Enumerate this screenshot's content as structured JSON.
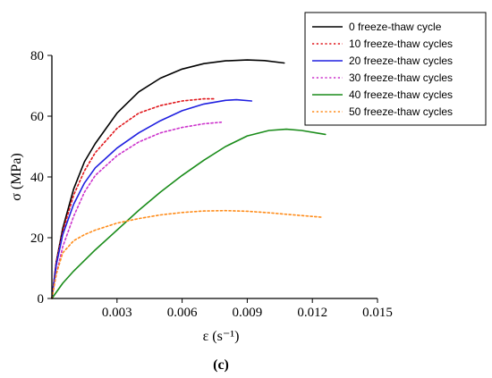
{
  "chart_data": {
    "type": "line",
    "xlabel": "ε (s⁻¹)",
    "ylabel": "σ (MPa)",
    "panel_label": "(c)",
    "xlim": [
      0,
      0.015
    ],
    "ylim": [
      0,
      80
    ],
    "x_ticks": [
      "0.003",
      "0.006",
      "0.009",
      "0.012",
      "0.015"
    ],
    "y_ticks": [
      "0",
      "20",
      "40",
      "60",
      "80"
    ],
    "legend_position": "top-right",
    "series": [
      {
        "name": "0 freeze-thaw cycle",
        "color": "#000000",
        "style": "solid",
        "x": [
          0,
          0.0002,
          0.0005,
          0.001,
          0.0015,
          0.002,
          0.003,
          0.004,
          0.005,
          0.006,
          0.007,
          0.008,
          0.009,
          0.0098,
          0.0107
        ],
        "y": [
          0,
          12,
          23,
          36,
          45,
          51,
          61,
          68,
          72.5,
          75.5,
          77.3,
          78.2,
          78.5,
          78.3,
          77.5
        ]
      },
      {
        "name": "10 freeze-thaw cycles",
        "color": "#e0161b",
        "style": "dotted",
        "x": [
          0,
          0.0002,
          0.0005,
          0.001,
          0.0015,
          0.002,
          0.003,
          0.004,
          0.005,
          0.006,
          0.007,
          0.0075
        ],
        "y": [
          0,
          12,
          22,
          34,
          42,
          48,
          56,
          61,
          63.5,
          65,
          65.7,
          65.7
        ]
      },
      {
        "name": "20 freeze-thaw cycles",
        "color": "#1f1fe0",
        "style": "solid",
        "x": [
          0,
          0.0002,
          0.0005,
          0.001,
          0.0015,
          0.002,
          0.003,
          0.004,
          0.005,
          0.006,
          0.007,
          0.008,
          0.0085,
          0.0092
        ],
        "y": [
          0,
          11,
          21,
          31,
          38,
          43,
          49.5,
          54.5,
          58.5,
          61.8,
          64,
          65.2,
          65.4,
          65
        ]
      },
      {
        "name": "30 freeze-thaw cycles",
        "color": "#cc33cc",
        "style": "dotted",
        "x": [
          0,
          0.0002,
          0.0005,
          0.001,
          0.0015,
          0.002,
          0.003,
          0.004,
          0.005,
          0.006,
          0.007,
          0.0078
        ],
        "y": [
          0,
          8,
          17,
          27,
          35,
          40.5,
          47,
          51.5,
          54.5,
          56.3,
          57.5,
          58
        ]
      },
      {
        "name": "40 freeze-thaw cycles",
        "color": "#1a8c1a",
        "style": "solid",
        "x": [
          0,
          0.0005,
          0.001,
          0.002,
          0.003,
          0.004,
          0.005,
          0.006,
          0.007,
          0.008,
          0.009,
          0.01,
          0.0108,
          0.0115,
          0.0126
        ],
        "y": [
          0,
          5,
          9,
          16,
          22.5,
          29,
          35,
          40.5,
          45.5,
          50,
          53.5,
          55.3,
          55.7,
          55.3,
          54
        ]
      },
      {
        "name": "50 freeze-thaw cycles",
        "color": "#ff8c1a",
        "style": "dotted",
        "x": [
          0,
          0.0002,
          0.0005,
          0.001,
          0.0015,
          0.002,
          0.003,
          0.004,
          0.005,
          0.006,
          0.007,
          0.008,
          0.009,
          0.01,
          0.011,
          0.0125
        ],
        "y": [
          0,
          8,
          15,
          19,
          21,
          22.5,
          24.8,
          26.3,
          27.5,
          28.3,
          28.8,
          28.9,
          28.7,
          28.2,
          27.6,
          26.7
        ]
      }
    ]
  }
}
